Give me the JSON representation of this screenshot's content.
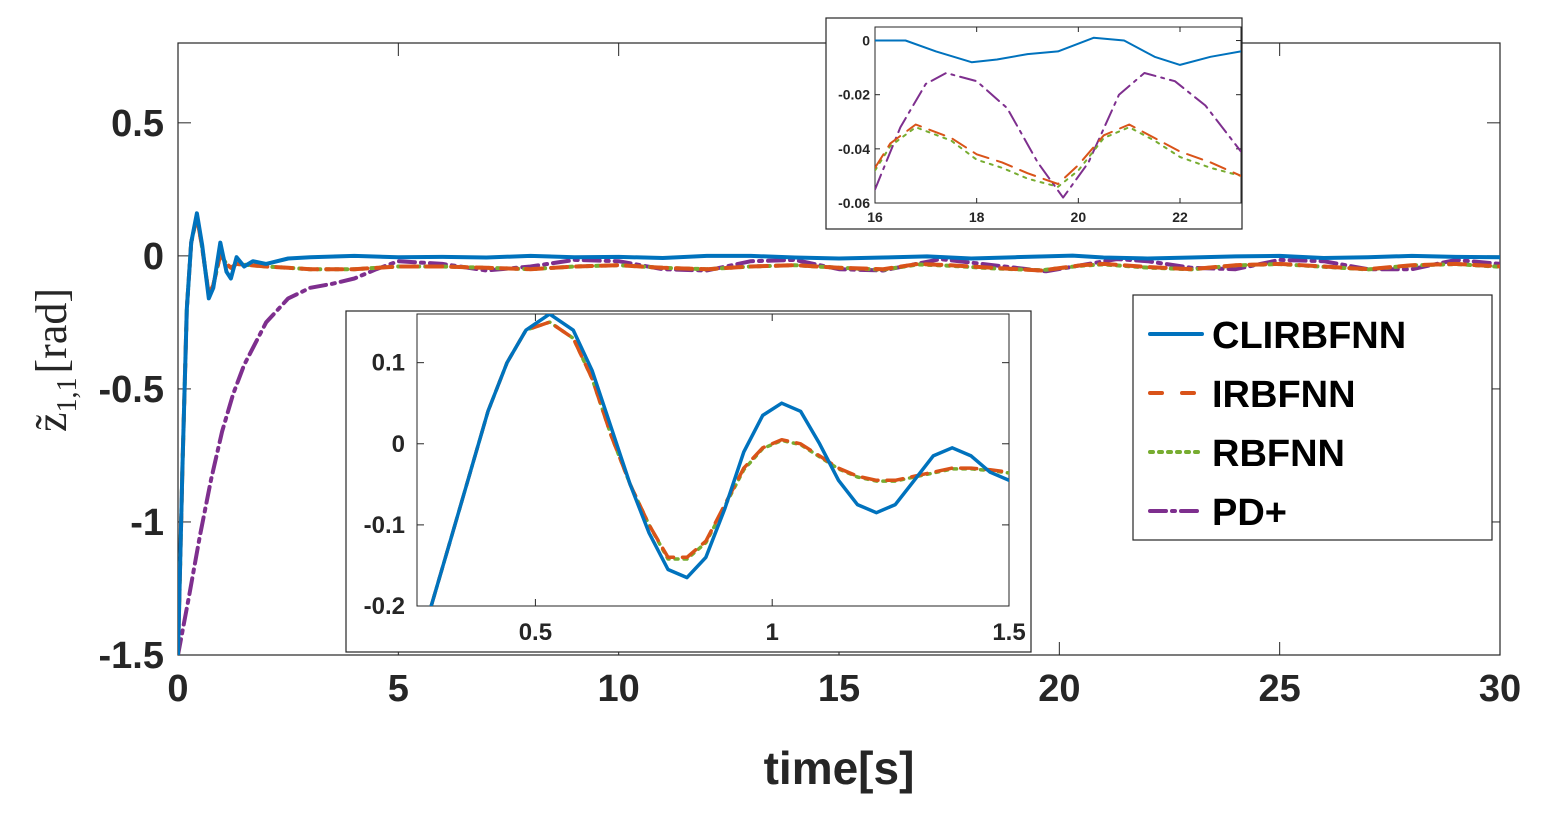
{
  "chart_data": {
    "type": "line",
    "ylabel_symbol": "z̃",
    "ylabel_subscript": "1,1",
    "ylabel_unit": "[rad]",
    "xlabel": "time[s]",
    "xlim": [
      0,
      30
    ],
    "ylim": [
      -1.5,
      0.8
    ],
    "xticks": [
      0,
      5,
      10,
      15,
      20,
      25,
      30
    ],
    "xtick_labels": [
      "0",
      "5",
      "10",
      "15",
      "20",
      "25",
      "30"
    ],
    "yticks": [
      -1.5,
      -1,
      -0.5,
      0,
      0.5
    ],
    "ytick_labels": [
      "-1.5",
      "-1",
      "-0.5",
      "0",
      "0.5"
    ],
    "legend": {
      "position": "right",
      "entries": [
        {
          "label": "CLIRBFNN",
          "color": "#0072BD",
          "style": "solid"
        },
        {
          "label": "IRBFNN",
          "color": "#D95319",
          "style": "dashed"
        },
        {
          "label": "RBFNN",
          "color": "#77AC30",
          "style": "dotted"
        },
        {
          "label": "PD+",
          "color": "#7E2F8E",
          "style": "dashdot"
        }
      ]
    },
    "series": [
      {
        "name": "CLIRBFNN",
        "color": "#0072BD",
        "x": [
          0,
          0.1,
          0.2,
          0.3,
          0.43,
          0.55,
          0.7,
          0.8,
          0.96,
          1.1,
          1.2,
          1.33,
          1.5,
          1.7,
          2.0,
          2.5,
          3.0,
          4.0,
          5.0,
          6.0,
          7.0,
          8.0,
          9.0,
          10.0,
          11.0,
          12.0,
          13.0,
          14.0,
          15.0,
          16.0,
          17.0,
          18.0,
          19.0,
          20.3,
          21.0,
          22.0,
          23.0,
          24.0,
          25.0,
          26.0,
          27.0,
          28.0,
          29.0,
          30.0
        ],
        "y": [
          -1.5,
          -0.8,
          -0.2,
          0.05,
          0.16,
          0.04,
          -0.16,
          -0.12,
          0.05,
          -0.06,
          -0.085,
          -0.005,
          -0.04,
          -0.02,
          -0.03,
          -0.01,
          -0.005,
          0.0,
          -0.005,
          -0.004,
          -0.006,
          0.0,
          -0.005,
          -0.004,
          -0.008,
          0.0,
          0.0,
          -0.006,
          -0.01,
          -0.006,
          -0.002,
          -0.01,
          -0.005,
          0.001,
          -0.006,
          -0.01,
          -0.006,
          -0.002,
          0.0,
          -0.008,
          -0.005,
          0.0,
          -0.004,
          -0.005
        ]
      },
      {
        "name": "IRBFNN",
        "color": "#D95319",
        "x": [
          0,
          0.1,
          0.2,
          0.3,
          0.43,
          0.55,
          0.7,
          0.8,
          0.96,
          1.1,
          1.2,
          1.33,
          1.5,
          2.0,
          2.5,
          3.0,
          4.0,
          5.0,
          6.0,
          7.0,
          8.0,
          9.0,
          10.0,
          11.0,
          12.0,
          13.0,
          14.0,
          15.0,
          16.0,
          16.8,
          17.5,
          18.5,
          19.6,
          20.5,
          21.0,
          22.0,
          23.0,
          24.0,
          25.0,
          26.0,
          27.0,
          28.0,
          29.0,
          30.0
        ],
        "y": [
          -1.5,
          -0.8,
          -0.2,
          0.05,
          0.15,
          0.03,
          -0.145,
          -0.11,
          0.005,
          -0.03,
          -0.045,
          -0.03,
          -0.033,
          -0.04,
          -0.045,
          -0.05,
          -0.05,
          -0.04,
          -0.04,
          -0.045,
          -0.05,
          -0.04,
          -0.035,
          -0.045,
          -0.05,
          -0.04,
          -0.035,
          -0.045,
          -0.05,
          -0.03,
          -0.035,
          -0.045,
          -0.055,
          -0.035,
          -0.03,
          -0.042,
          -0.05,
          -0.035,
          -0.03,
          -0.04,
          -0.05,
          -0.035,
          -0.03,
          -0.04
        ]
      },
      {
        "name": "RBFNN",
        "color": "#77AC30",
        "x": [
          0,
          0.1,
          0.2,
          0.3,
          0.43,
          0.55,
          0.7,
          0.8,
          0.96,
          1.1,
          1.2,
          1.33,
          1.5,
          2.0,
          2.5,
          3.0,
          4.0,
          5.0,
          6.0,
          7.0,
          8.0,
          9.0,
          10.0,
          11.0,
          12.0,
          13.0,
          14.0,
          15.0,
          16.0,
          16.8,
          17.5,
          18.5,
          19.6,
          20.5,
          21.0,
          22.0,
          23.0,
          24.0,
          25.0,
          26.0,
          27.0,
          28.0,
          29.0,
          30.0
        ],
        "y": [
          -1.5,
          -0.8,
          -0.2,
          0.05,
          0.15,
          0.03,
          -0.145,
          -0.11,
          0.005,
          -0.03,
          -0.045,
          -0.03,
          -0.033,
          -0.04,
          -0.045,
          -0.05,
          -0.05,
          -0.04,
          -0.04,
          -0.045,
          -0.05,
          -0.04,
          -0.035,
          -0.045,
          -0.05,
          -0.04,
          -0.035,
          -0.045,
          -0.052,
          -0.032,
          -0.037,
          -0.047,
          -0.054,
          -0.037,
          -0.032,
          -0.044,
          -0.051,
          -0.036,
          -0.031,
          -0.041,
          -0.051,
          -0.036,
          -0.031,
          -0.041
        ]
      },
      {
        "name": "PD+",
        "color": "#7E2F8E",
        "x": [
          0,
          0.25,
          0.5,
          0.75,
          1.0,
          1.25,
          1.5,
          2.0,
          2.5,
          3.0,
          3.5,
          4.0,
          4.5,
          5.0,
          6.0,
          7.0,
          8.0,
          9.0,
          10.0,
          11.0,
          12.0,
          13.0,
          14.0,
          15.0,
          16.0,
          17.3,
          18.5,
          19.7,
          21.3,
          22.0,
          23.0,
          24.0,
          25.0,
          26.0,
          27.0,
          28.0,
          29.0,
          30.0
        ],
        "y": [
          -1.5,
          -1.28,
          -1.05,
          -0.84,
          -0.66,
          -0.52,
          -0.41,
          -0.25,
          -0.16,
          -0.12,
          -0.105,
          -0.085,
          -0.05,
          -0.02,
          -0.03,
          -0.055,
          -0.04,
          -0.015,
          -0.02,
          -0.05,
          -0.055,
          -0.02,
          -0.015,
          -0.05,
          -0.055,
          -0.012,
          -0.035,
          -0.058,
          -0.012,
          -0.02,
          -0.045,
          -0.05,
          -0.015,
          -0.02,
          -0.05,
          -0.05,
          -0.015,
          -0.03
        ]
      }
    ],
    "insets": [
      {
        "position": "top-right",
        "xlim": [
          16,
          23.2
        ],
        "ylim": [
          -0.06,
          0.005
        ],
        "xticks": [
          16,
          18,
          20,
          22
        ],
        "xtick_labels": [
          "16",
          "18",
          "20",
          "22"
        ],
        "yticks": [
          -0.06,
          -0.04,
          -0.02,
          0
        ],
        "ytick_labels": [
          "-0.06",
          "-0.04",
          "-0.02",
          "0"
        ],
        "series": [
          {
            "name": "CLIRBFNN",
            "x": [
              16,
              16.6,
              17.2,
              17.9,
              18.4,
              19.0,
              19.6,
              20.3,
              20.9,
              21.5,
              22.0,
              22.6,
              23.2
            ],
            "y": [
              0.0,
              0.0,
              -0.004,
              -0.008,
              -0.007,
              -0.005,
              -0.004,
              0.001,
              0.0,
              -0.006,
              -0.009,
              -0.006,
              -0.004
            ]
          },
          {
            "name": "IRBFNN",
            "x": [
              16,
              16.3,
              16.8,
              17.5,
              18.0,
              18.5,
              19.0,
              19.6,
              20.0,
              20.5,
              21.0,
              21.5,
              22.0,
              22.6,
              23.2
            ],
            "y": [
              -0.047,
              -0.038,
              -0.031,
              -0.036,
              -0.042,
              -0.045,
              -0.049,
              -0.053,
              -0.046,
              -0.035,
              -0.031,
              -0.036,
              -0.041,
              -0.045,
              -0.05
            ]
          },
          {
            "name": "RBFNN",
            "x": [
              16,
              16.3,
              16.8,
              17.5,
              18.0,
              18.5,
              19.0,
              19.6,
              20.0,
              20.5,
              21.0,
              21.5,
              22.0,
              22.6,
              23.2
            ],
            "y": [
              -0.048,
              -0.039,
              -0.032,
              -0.037,
              -0.044,
              -0.047,
              -0.051,
              -0.054,
              -0.048,
              -0.036,
              -0.032,
              -0.037,
              -0.043,
              -0.047,
              -0.05
            ]
          },
          {
            "name": "PD+",
            "x": [
              16,
              16.5,
              17.0,
              17.4,
              18.0,
              18.6,
              19.2,
              19.7,
              20.2,
              20.8,
              21.3,
              21.9,
              22.5,
              23.2
            ],
            "y": [
              -0.055,
              -0.032,
              -0.016,
              -0.012,
              -0.015,
              -0.025,
              -0.045,
              -0.058,
              -0.045,
              -0.02,
              -0.012,
              -0.015,
              -0.024,
              -0.041
            ]
          }
        ]
      },
      {
        "position": "center",
        "xlim": [
          0.25,
          1.5
        ],
        "ylim": [
          -0.2,
          0.16
        ],
        "xticks": [
          0.5,
          1,
          1.5
        ],
        "xtick_labels": [
          "0.5",
          "1",
          "1.5"
        ],
        "yticks": [
          -0.2,
          -0.1,
          0,
          0.1
        ],
        "ytick_labels": [
          "-0.2",
          "-0.1",
          "0",
          "0.1"
        ],
        "series": [
          {
            "name": "CLIRBFNN",
            "x": [
              0.28,
              0.32,
              0.36,
              0.4,
              0.44,
              0.48,
              0.53,
              0.58,
              0.62,
              0.66,
              0.7,
              0.74,
              0.78,
              0.82,
              0.86,
              0.9,
              0.94,
              0.98,
              1.02,
              1.06,
              1.1,
              1.14,
              1.18,
              1.22,
              1.26,
              1.3,
              1.34,
              1.38,
              1.42,
              1.46,
              1.5
            ],
            "y": [
              -0.2,
              -0.12,
              -0.04,
              0.04,
              0.1,
              0.14,
              0.16,
              0.14,
              0.09,
              0.02,
              -0.05,
              -0.11,
              -0.155,
              -0.165,
              -0.14,
              -0.08,
              -0.01,
              0.035,
              0.05,
              0.04,
              0.0,
              -0.045,
              -0.075,
              -0.085,
              -0.075,
              -0.045,
              -0.015,
              -0.005,
              -0.015,
              -0.035,
              -0.045
            ]
          },
          {
            "name": "IRBFNN",
            "x": [
              0.28,
              0.32,
              0.36,
              0.4,
              0.44,
              0.48,
              0.53,
              0.58,
              0.62,
              0.66,
              0.7,
              0.74,
              0.78,
              0.82,
              0.86,
              0.9,
              0.94,
              0.98,
              1.02,
              1.06,
              1.1,
              1.14,
              1.18,
              1.22,
              1.26,
              1.3,
              1.34,
              1.38,
              1.42,
              1.46,
              1.5
            ],
            "y": [
              -0.2,
              -0.12,
              -0.04,
              0.04,
              0.1,
              0.14,
              0.15,
              0.13,
              0.08,
              0.01,
              -0.05,
              -0.1,
              -0.14,
              -0.14,
              -0.12,
              -0.075,
              -0.03,
              -0.005,
              0.005,
              0.0,
              -0.015,
              -0.03,
              -0.04,
              -0.045,
              -0.045,
              -0.04,
              -0.035,
              -0.03,
              -0.03,
              -0.032,
              -0.035
            ]
          },
          {
            "name": "RBFNN",
            "x": [
              0.28,
              0.32,
              0.36,
              0.4,
              0.44,
              0.48,
              0.53,
              0.58,
              0.62,
              0.66,
              0.7,
              0.74,
              0.78,
              0.82,
              0.86,
              0.9,
              0.94,
              0.98,
              1.02,
              1.06,
              1.1,
              1.14,
              1.18,
              1.22,
              1.26,
              1.3,
              1.34,
              1.38,
              1.42,
              1.46,
              1.5
            ],
            "y": [
              -0.2,
              -0.12,
              -0.04,
              0.04,
              0.1,
              0.14,
              0.15,
              0.13,
              0.08,
              0.01,
              -0.05,
              -0.1,
              -0.142,
              -0.142,
              -0.122,
              -0.077,
              -0.032,
              -0.006,
              0.004,
              -0.001,
              -0.016,
              -0.031,
              -0.041,
              -0.046,
              -0.046,
              -0.041,
              -0.036,
              -0.031,
              -0.031,
              -0.033,
              -0.036
            ]
          }
        ]
      }
    ]
  }
}
